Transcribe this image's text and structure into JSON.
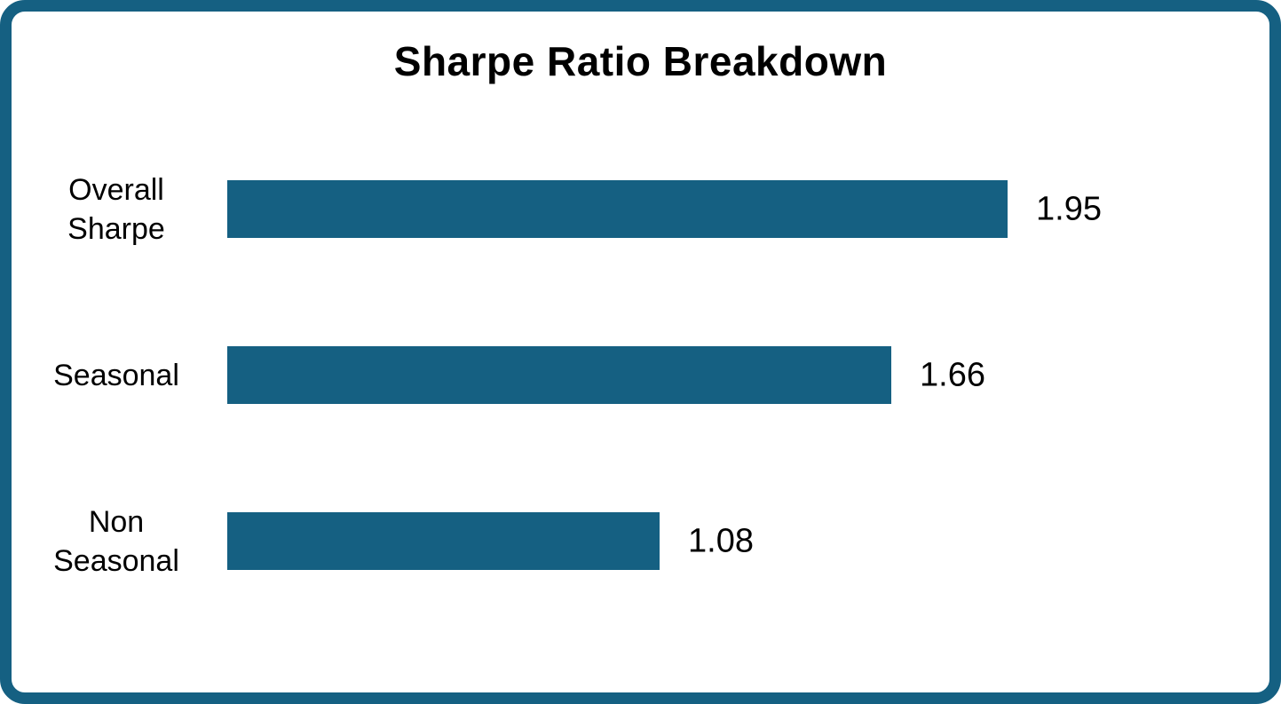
{
  "chart_data": {
    "type": "bar",
    "orientation": "horizontal",
    "title": "Sharpe Ratio Breakdown",
    "categories": [
      "Overall\nSharpe",
      "Seasonal",
      "Non\nSeasonal"
    ],
    "values": [
      1.95,
      1.66,
      1.08
    ],
    "value_labels": [
      "1.95",
      "1.66",
      "1.08"
    ],
    "xlim": [
      0,
      1.95
    ],
    "grid": false,
    "legend": false,
    "bar_color": "#156082",
    "frame_color": "#156082",
    "text_color": "#000000",
    "background": "#ffffff"
  }
}
